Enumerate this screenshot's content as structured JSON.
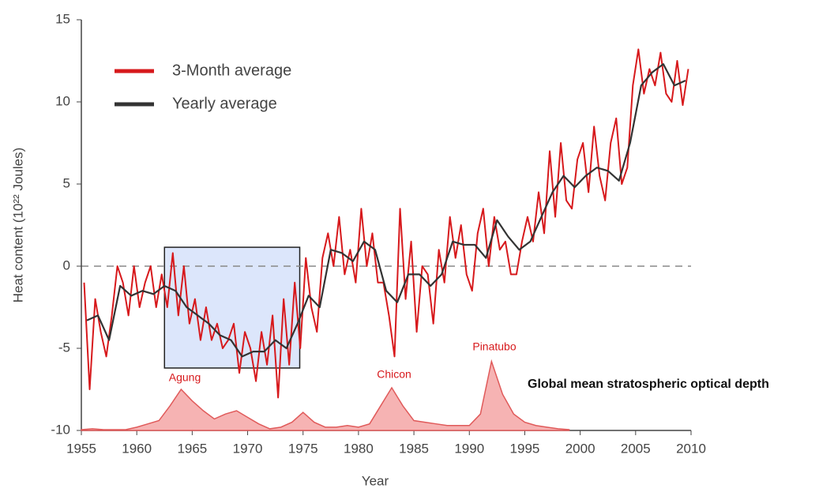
{
  "chart_data": {
    "type": "line",
    "xlabel": "Year",
    "ylabel": "Heat content (10²² Joules)",
    "xlim": [
      1955,
      2010
    ],
    "xticks": [
      1955,
      1960,
      1965,
      1970,
      1975,
      1980,
      1985,
      1990,
      1995,
      2000,
      2005,
      2010
    ],
    "ylim": [
      -10,
      15
    ],
    "yticks": [
      -10,
      -5,
      0,
      5,
      10,
      15
    ],
    "reference_line": 0,
    "highlight": {
      "xlim": [
        1962.5,
        1974.7
      ],
      "ylim": [
        -6.2,
        1.15
      ]
    },
    "legend": "upper left",
    "series": [
      {
        "name": "3-Month average",
        "color": "#d7191c",
        "x": [
          1955.25,
          1955.75,
          1956.25,
          1956.75,
          1957.25,
          1957.75,
          1958.25,
          1958.75,
          1959.25,
          1959.75,
          1960.25,
          1960.75,
          1961.25,
          1961.75,
          1962.25,
          1962.75,
          1963.25,
          1963.75,
          1964.25,
          1964.75,
          1965.25,
          1965.75,
          1966.25,
          1966.75,
          1967.25,
          1967.75,
          1968.25,
          1968.75,
          1969.25,
          1969.75,
          1970.25,
          1970.75,
          1971.25,
          1971.75,
          1972.25,
          1972.75,
          1973.25,
          1973.75,
          1974.25,
          1974.75,
          1975.25,
          1975.75,
          1976.25,
          1976.75,
          1977.25,
          1977.75,
          1978.25,
          1978.75,
          1979.25,
          1979.75,
          1980.25,
          1980.75,
          1981.25,
          1981.75,
          1982.25,
          1982.75,
          1983.25,
          1983.75,
          1984.25,
          1984.75,
          1985.25,
          1985.75,
          1986.25,
          1986.75,
          1987.25,
          1987.75,
          1988.25,
          1988.75,
          1989.25,
          1989.75,
          1990.25,
          1990.75,
          1991.25,
          1991.75,
          1992.25,
          1992.75,
          1993.25,
          1993.75,
          1994.25,
          1994.75,
          1995.25,
          1995.75,
          1996.25,
          1996.75,
          1997.25,
          1997.75,
          1998.25,
          1998.75,
          1999.25,
          1999.75,
          2000.25,
          2000.75,
          2001.25,
          2001.75,
          2002.25,
          2002.75,
          2003.25,
          2003.75,
          2004.25,
          2004.75,
          2005.25,
          2005.75,
          2006.25,
          2006.75,
          2007.25,
          2007.75,
          2008.25,
          2008.75,
          2009.25,
          2009.75
        ],
        "values": [
          -1,
          -7.5,
          -2,
          -4,
          -5.5,
          -3,
          0,
          -1,
          -3,
          0,
          -2.5,
          -1,
          0,
          -2.5,
          -0.5,
          -2.5,
          0.8,
          -3,
          0,
          -3.5,
          -2,
          -4.5,
          -2.5,
          -4.5,
          -3.5,
          -5,
          -4.5,
          -3.5,
          -6.5,
          -4,
          -5,
          -7,
          -4,
          -6,
          -3,
          -8,
          -2,
          -6,
          -1,
          -5,
          0.5,
          -2.5,
          -4,
          0.5,
          2,
          0,
          3,
          -0.5,
          1,
          -1,
          3.5,
          0,
          2,
          -1,
          -1,
          -3,
          -5.5,
          3.5,
          -2,
          1.5,
          -4,
          0,
          -0.5,
          -3.5,
          1,
          -1,
          3,
          0.5,
          2.5,
          -0.5,
          -1.5,
          2,
          3.5,
          0,
          3,
          1,
          1.5,
          -0.5,
          -0.5,
          1.5,
          3,
          1.5,
          4.5,
          2,
          7,
          3,
          7.5,
          4,
          3.5,
          6.5,
          7.5,
          4.5,
          8.5,
          5.5,
          4,
          7.5,
          9,
          5,
          6,
          11,
          13.2,
          10.5,
          12,
          11,
          13,
          10.5,
          10,
          12.5,
          9.8,
          12
        ]
      },
      {
        "name": "Yearly average",
        "color": "#333333",
        "x": [
          1955.5,
          1956.5,
          1957.5,
          1958.5,
          1959.5,
          1960.5,
          1961.5,
          1962.5,
          1963.5,
          1964.5,
          1965.5,
          1966.5,
          1967.5,
          1968.5,
          1969.5,
          1970.5,
          1971.5,
          1972.5,
          1973.5,
          1974.5,
          1975.5,
          1976.5,
          1977.5,
          1978.5,
          1979.5,
          1980.5,
          1981.5,
          1982.5,
          1983.5,
          1984.5,
          1985.5,
          1986.5,
          1987.5,
          1988.5,
          1989.5,
          1990.5,
          1991.5,
          1992.5,
          1993.5,
          1994.5,
          1995.5,
          1996.5,
          1997.5,
          1998.5,
          1999.5,
          2000.5,
          2001.5,
          2002.5,
          2003.5,
          2004.5,
          2005.5,
          2006.5,
          2007.5,
          2008.5,
          2009.5
        ],
        "values": [
          -3.3,
          -3,
          -4.5,
          -1.2,
          -1.8,
          -1.5,
          -1.7,
          -1.2,
          -1.5,
          -2.5,
          -3,
          -3.5,
          -4.2,
          -4.5,
          -5.5,
          -5.2,
          -5.2,
          -4.5,
          -5,
          -3.5,
          -1.8,
          -2.5,
          1,
          0.8,
          0.3,
          1.5,
          1,
          -1.5,
          -2.2,
          -0.5,
          -0.5,
          -1.2,
          -0.5,
          1.5,
          1.3,
          1.3,
          0.5,
          2.8,
          1.8,
          1,
          1.5,
          3,
          4.5,
          5.5,
          4.8,
          5.5,
          6,
          5.8,
          5.2,
          7.5,
          11,
          11.8,
          12.3,
          11,
          11.3
        ]
      },
      {
        "name": "Global mean stratospheric optical depth",
        "color": "#e05a5a",
        "style": "area",
        "x": [
          1955,
          1956,
          1957,
          1958,
          1959,
          1960,
          1961,
          1962,
          1963,
          1964,
          1965,
          1966,
          1967,
          1968,
          1969,
          1970,
          1971,
          1972,
          1973,
          1974,
          1975,
          1976,
          1977,
          1978,
          1979,
          1980,
          1981,
          1982,
          1983,
          1984,
          1985,
          1986,
          1987,
          1988,
          1989,
          1990,
          1991,
          1992,
          1993,
          1994,
          1995,
          1996,
          1997,
          1998,
          1999
        ],
        "values": [
          -9.95,
          -9.9,
          -9.95,
          -9.95,
          -9.95,
          -9.8,
          -9.6,
          -9.4,
          -8.5,
          -7.5,
          -8.2,
          -8.8,
          -9.3,
          -9,
          -8.8,
          -9.2,
          -9.6,
          -9.9,
          -9.8,
          -9.5,
          -8.9,
          -9.5,
          -9.8,
          -9.8,
          -9.7,
          -9.8,
          -9.6,
          -8.5,
          -7.4,
          -8.5,
          -9.4,
          -9.5,
          -9.6,
          -9.7,
          -9.7,
          -9.7,
          -9,
          -5.8,
          -7.8,
          -9,
          -9.5,
          -9.7,
          -9.8,
          -9.9,
          -9.95
        ]
      }
    ],
    "annotations": [
      "Agung",
      "Chicon",
      "Pinatubo"
    ]
  }
}
